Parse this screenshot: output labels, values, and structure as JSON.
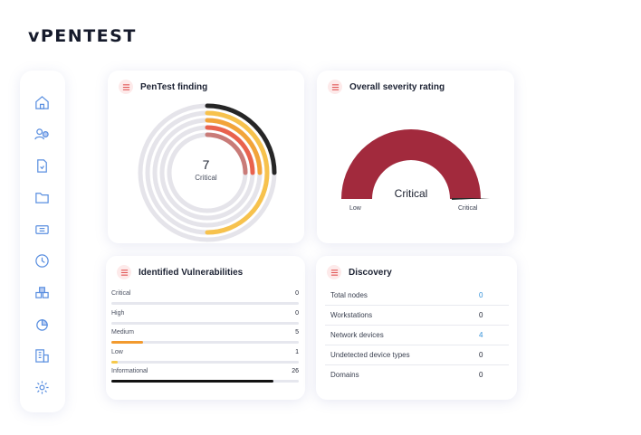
{
  "brand": {
    "logo": "vPENTEST"
  },
  "sidebar": {
    "items": [
      {
        "icon": "home-icon"
      },
      {
        "icon": "users-icon"
      },
      {
        "icon": "document-icon"
      },
      {
        "icon": "folder-icon"
      },
      {
        "icon": "ticket-icon"
      },
      {
        "icon": "clock-icon"
      },
      {
        "icon": "boxes-icon"
      },
      {
        "icon": "pie-chart-icon"
      },
      {
        "icon": "building-icon"
      },
      {
        "icon": "gear-icon"
      }
    ]
  },
  "pentest_finding": {
    "title": "PenTest finding",
    "count": "7",
    "count_label": "Critical",
    "rings": [
      {
        "color": "#262626",
        "fraction": 0.25
      },
      {
        "color": "#f7c24d",
        "fraction": 0.5
      },
      {
        "color": "#f2a43a",
        "fraction": 0.25
      },
      {
        "color": "#e9624e",
        "fraction": 0.25
      },
      {
        "color": "#c97b78",
        "fraction": 0.25
      }
    ]
  },
  "severity": {
    "title": "Overall severity rating",
    "rating": "Critical",
    "low_label": "Low",
    "high_label": "Critical",
    "level": 1.0,
    "gauge_color": "#a22a3d"
  },
  "vulnerabilities": {
    "title": "Identified Vulnerabilities",
    "max": 30,
    "items": [
      {
        "label": "Critical",
        "value": 0,
        "color": "#e0e0e8"
      },
      {
        "label": "High",
        "value": 0,
        "color": "#e0e0e8"
      },
      {
        "label": "Medium",
        "value": 5,
        "color": "#f29a2e"
      },
      {
        "label": "Low",
        "value": 1,
        "color": "#f7c94a"
      },
      {
        "label": "Informational",
        "value": 26,
        "color": "#111111"
      }
    ]
  },
  "discovery": {
    "title": "Discovery",
    "rows": [
      {
        "label": "Total nodes",
        "value": "0",
        "link": true
      },
      {
        "label": "Workstations",
        "value": "0",
        "link": false
      },
      {
        "label": "Network devices",
        "value": "4",
        "link": true
      },
      {
        "label": "Undetected device types",
        "value": "0",
        "link": false
      },
      {
        "label": "Domains",
        "value": "0",
        "link": false
      }
    ]
  }
}
